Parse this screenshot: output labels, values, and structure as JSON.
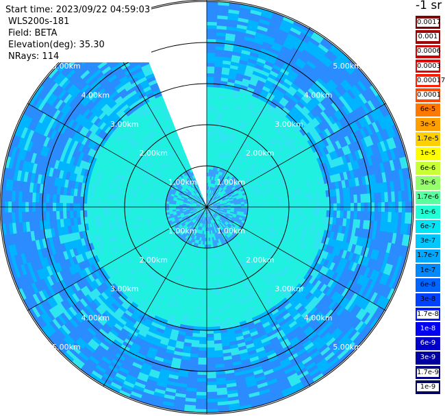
{
  "info": {
    "start_time": "Start time: 2023/09/22 04:59:03",
    "instrument": "WLS200s-181",
    "field": "Field: BETA",
    "elevation": "Elevation(deg): 35.30",
    "nrays": "NRays: 114"
  },
  "legend": {
    "title": "-1 sr",
    "entries": [
      {
        "label": "0.0017",
        "color": "#7f0000",
        "boxed": true
      },
      {
        "label": "0.001",
        "color": "#a00000",
        "boxed": true
      },
      {
        "label": "0.0006",
        "color": "#c80000",
        "boxed": true
      },
      {
        "label": "0.0003",
        "color": "#e80000",
        "boxed": true
      },
      {
        "label": "0.00017",
        "color": "#ff1a00",
        "boxed": true
      },
      {
        "label": "0.0001",
        "color": "#ff4800",
        "boxed": true
      },
      {
        "label": "6e-5",
        "color": "#ff7800",
        "boxed": false
      },
      {
        "label": "3e-5",
        "color": "#ffa000",
        "boxed": false
      },
      {
        "label": "1.7e-5",
        "color": "#ffd000",
        "boxed": false
      },
      {
        "label": "1e-5",
        "color": "#ffff00",
        "boxed": false
      },
      {
        "label": "6e-6",
        "color": "#c8ff36",
        "boxed": false
      },
      {
        "label": "3e-6",
        "color": "#94ff6a",
        "boxed": false
      },
      {
        "label": "1.7e-6",
        "color": "#5cffa0",
        "boxed": false
      },
      {
        "label": "1e-6",
        "color": "#22ffd6",
        "boxed": false
      },
      {
        "label": "6e-7",
        "color": "#00e4f8",
        "boxed": false
      },
      {
        "label": "3e-7",
        "color": "#00c8ff",
        "boxed": false
      },
      {
        "label": "1.7e-7",
        "color": "#00a8ff",
        "boxed": false
      },
      {
        "label": "1e-7",
        "color": "#0088ff",
        "boxed": false
      },
      {
        "label": "6e-8",
        "color": "#0064ff",
        "boxed": false
      },
      {
        "label": "3e-8",
        "color": "#0040ff",
        "boxed": false
      },
      {
        "label": "1.7e-8",
        "color": "#0018ff",
        "boxed": true
      },
      {
        "label": "1e-8",
        "color": "#0000f0",
        "boxed": false
      },
      {
        "label": "6e-9",
        "color": "#0000c8",
        "boxed": false
      },
      {
        "label": "3e-9",
        "color": "#0000a0",
        "boxed": false
      },
      {
        "label": "1.7e-9",
        "color": "#000080",
        "boxed": true
      },
      {
        "label": "1e-9",
        "color": "#00005c",
        "boxed": true
      }
    ]
  },
  "plot": {
    "max_range_km": 5,
    "ring_labels": [
      "1.00km",
      "2.00km",
      "3.00km",
      "4.00km",
      "5.00km"
    ],
    "gap_azimuth_deg": [
      336,
      359
    ],
    "colors": {
      "near": "#3aa0ff",
      "mid": "#20f0e0",
      "outer_a": "#2a8cff",
      "outer_b": "#00b4ff",
      "outer_c": "#2fe6f0",
      "grid": "#000000",
      "label": "#ffffff"
    }
  }
}
